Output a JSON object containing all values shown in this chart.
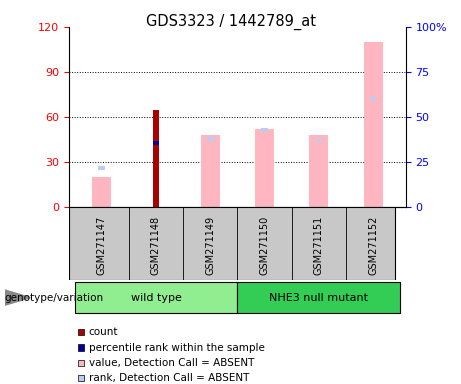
{
  "title": "GDS3323 / 1442789_at",
  "samples": [
    "GSM271147",
    "GSM271148",
    "GSM271149",
    "GSM271150",
    "GSM271151",
    "GSM271152"
  ],
  "wt_indices": [
    0,
    1,
    2
  ],
  "nhe_indices": [
    3,
    4,
    5
  ],
  "wt_label": "wild type",
  "nhe_label": "NHE3 null mutant",
  "wt_color": "#90EE90",
  "nhe_color": "#33CC55",
  "gray_box_color": "#C8C8C8",
  "value_absent": [
    20,
    0,
    48,
    52,
    48,
    110
  ],
  "rank_absent_pct": [
    22,
    0,
    38,
    43,
    37,
    60
  ],
  "count_value": [
    0,
    65,
    0,
    0,
    0,
    0
  ],
  "percentile_value": [
    0,
    43,
    0,
    0,
    0,
    0
  ],
  "ylim_left": [
    0,
    120
  ],
  "ylim_right": [
    0,
    100
  ],
  "yticks_left": [
    0,
    30,
    60,
    90,
    120
  ],
  "yticks_right": [
    0,
    25,
    50,
    75,
    100
  ],
  "ytick_right_labels": [
    "0",
    "25",
    "50",
    "75",
    "100%"
  ],
  "color_count": "#AA0000",
  "color_percentile": "#0000AA",
  "color_value_absent": "#FFB6C1",
  "color_rank_absent": "#BBCCEE",
  "legend_items": [
    {
      "color": "#AA0000",
      "label": "count"
    },
    {
      "color": "#0000AA",
      "label": "percentile rank within the sample"
    },
    {
      "color": "#FFB6C1",
      "label": "value, Detection Call = ABSENT"
    },
    {
      "color": "#BBCCEE",
      "label": "rank, Detection Call = ABSENT"
    }
  ],
  "genotype_label": "genotype/variation",
  "bar_width": 0.35,
  "rank_bar_width": 0.12,
  "figsize": [
    4.61,
    3.84
  ],
  "dpi": 100
}
